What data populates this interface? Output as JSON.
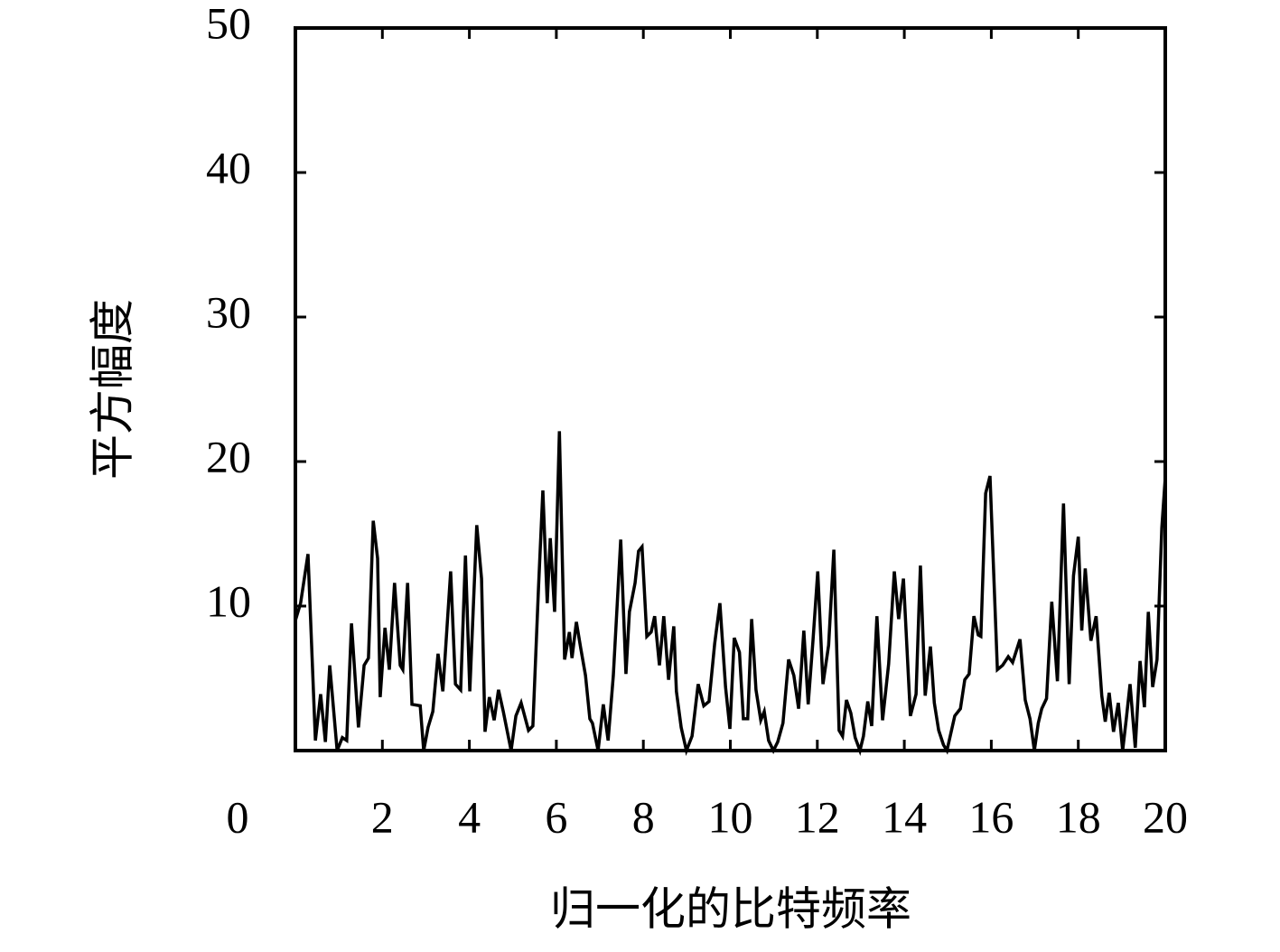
{
  "chart_data": {
    "type": "line",
    "xlabel": "归一化的比特频率",
    "ylabel": "平方幅度",
    "color": "#000000",
    "x": [
      0,
      0.12,
      0.29,
      0.46,
      0.58,
      0.69,
      0.79,
      0.96,
      1.08,
      1.18,
      1.29,
      1.45,
      1.58,
      1.68,
      1.79,
      1.89,
      1.95,
      2.06,
      2.16,
      2.28,
      2.41,
      2.47,
      2.58,
      2.68,
      2.87,
      2.95,
      3.05,
      3.16,
      3.28,
      3.39,
      3.57,
      3.68,
      3.8,
      3.91,
      4.01,
      4.17,
      4.28,
      4.36,
      4.46,
      4.57,
      4.67,
      4.78,
      4.96,
      5.07,
      5.19,
      5.36,
      5.46,
      5.59,
      5.69,
      5.79,
      5.86,
      5.96,
      6.07,
      6.19,
      6.3,
      6.36,
      6.46,
      6.56,
      6.67,
      6.77,
      6.83,
      6.96,
      7.08,
      7.19,
      7.31,
      7.48,
      7.6,
      7.68,
      7.81,
      7.89,
      7.97,
      8.08,
      8.18,
      8.26,
      8.37,
      8.47,
      8.58,
      8.7,
      8.76,
      8.87,
      8.99,
      9.12,
      9.26,
      9.39,
      9.51,
      9.64,
      9.76,
      9.89,
      9.99,
      10.09,
      10.21,
      10.3,
      10.4,
      10.49,
      10.59,
      10.7,
      10.78,
      10.88,
      10.99,
      11.09,
      11.21,
      11.34,
      11.46,
      11.57,
      11.69,
      11.79,
      11.9,
      12.01,
      12.13,
      12.26,
      12.38,
      12.5,
      12.58,
      12.67,
      12.77,
      12.87,
      12.98,
      13.06,
      13.16,
      13.25,
      13.37,
      13.5,
      13.64,
      13.77,
      13.87,
      13.98,
      14.14,
      14.27,
      14.37,
      14.48,
      14.6,
      14.69,
      14.79,
      14.9,
      14.98,
      15.16,
      15.29,
      15.39,
      15.49,
      15.6,
      15.7,
      15.76,
      15.87,
      15.97,
      16.14,
      16.26,
      16.39,
      16.49,
      16.66,
      16.78,
      16.89,
      16.99,
      17.08,
      17.16,
      17.27,
      17.39,
      17.52,
      17.66,
      17.79,
      17.89,
      18,
      18.08,
      18.16,
      18.29,
      18.41,
      18.54,
      18.62,
      18.71,
      18.81,
      18.92,
      19.02,
      19.1,
      19.19,
      19.31,
      19.42,
      19.52,
      19.61,
      19.71,
      19.81,
      19.92,
      20
    ],
    "values": [
      9,
      10.2,
      13.6,
      0.7,
      3.9,
      0.6,
      5.9,
      0,
      0.9,
      0.7,
      8.8,
      1.6,
      5.9,
      6.4,
      15.9,
      13.3,
      3.7,
      8.5,
      5.6,
      11.6,
      5.9,
      5.6,
      11.6,
      3.2,
      3.1,
      0,
      1.6,
      2.7,
      6.7,
      4.1,
      12.4,
      4.6,
      4.2,
      13.5,
      4.1,
      15.6,
      11.9,
      1.3,
      3.7,
      2.1,
      4.2,
      2.7,
      0,
      2.4,
      3.3,
      1.4,
      1.7,
      11.3,
      18,
      10.2,
      14.7,
      9.6,
      22.1,
      6.3,
      8.2,
      6.4,
      8.9,
      7.1,
      5.2,
      2.2,
      1.9,
      0,
      3.2,
      0.7,
      5.2,
      14.6,
      5.3,
      9.6,
      11.6,
      13.8,
      14.1,
      7.9,
      8.2,
      9.3,
      5.9,
      9.3,
      4.9,
      8.6,
      4.1,
      1.6,
      0,
      1,
      4.6,
      3.1,
      3.4,
      7.4,
      10.2,
      4.4,
      1.5,
      7.8,
      6.8,
      2.2,
      2.2,
      9.1,
      4.2,
      2.1,
      2.7,
      0.7,
      0,
      0.6,
      1.9,
      6.3,
      5.2,
      2.9,
      8.3,
      3.2,
      7.6,
      12.4,
      4.6,
      7.3,
      13.9,
      1.4,
      1,
      3.5,
      2.6,
      0.9,
      0,
      1,
      3.4,
      1.7,
      9.3,
      2.1,
      6,
      12.4,
      9.1,
      11.9,
      2.4,
      3.9,
      12.8,
      3.8,
      7.2,
      3.3,
      1.4,
      0.4,
      0,
      2.4,
      2.9,
      4.9,
      5.3,
      9.3,
      8,
      7.9,
      17.8,
      19,
      5.6,
      5.9,
      6.5,
      6.1,
      7.7,
      3.5,
      2.2,
      0,
      1.9,
      2.9,
      3.6,
      10.3,
      4.8,
      17.1,
      4.6,
      12.1,
      14.8,
      8.3,
      12.6,
      7.6,
      9.3,
      3.8,
      2,
      4,
      1.3,
      3.3,
      0,
      2.1,
      4.6,
      0.2,
      6.2,
      3,
      9.6,
      4.4,
      6.3,
      15.4,
      18.9
    ],
    "xlim": [
      0,
      20
    ],
    "ylim": [
      0,
      50
    ],
    "xticks": [
      0,
      2,
      4,
      6,
      8,
      10,
      12,
      14,
      16,
      18,
      20
    ],
    "yticks": [
      10,
      20,
      30,
      40,
      50
    ]
  }
}
